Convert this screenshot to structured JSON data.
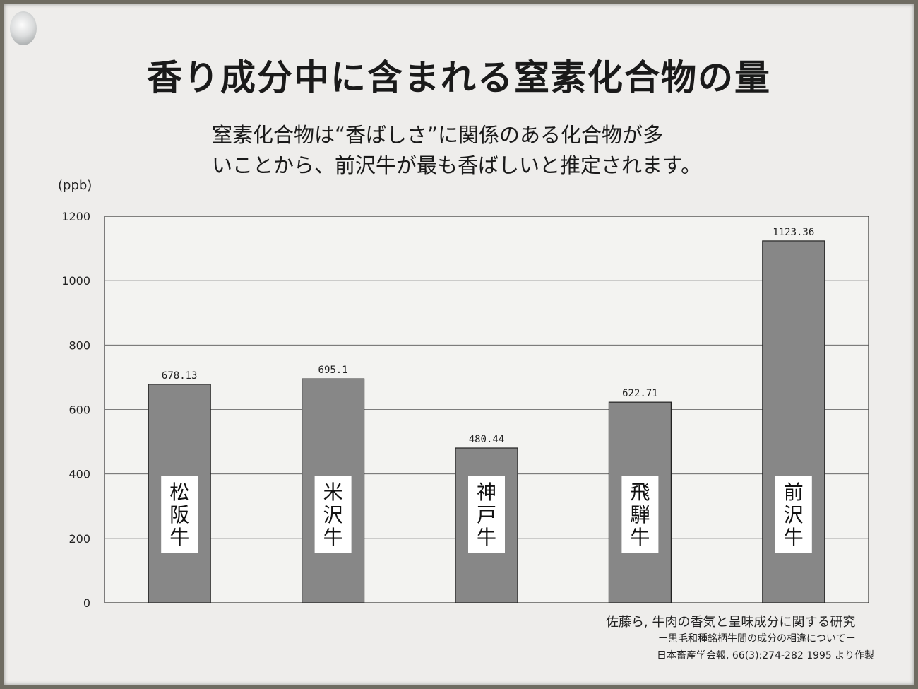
{
  "title": "香り成分中に含まれる窒素化合物の量",
  "subtitle_line1": "窒素化合物は“香ばしさ”に関係のある化合物が多",
  "subtitle_line2": "いことから、前沢牛が最も香ばしいと推定されます。",
  "source": {
    "line1": "佐藤ら, 牛肉の香気と呈味成分に関する研究",
    "line2": "ー黒毛和種銘柄牛間の成分の相違についてー",
    "line3": "日本畜産学会報, 66(3):274-282 1995 より作製"
  },
  "chart_data": {
    "type": "bar",
    "unit": "(ppb)",
    "categories": [
      "松阪牛",
      "米沢牛",
      "神戸牛",
      "飛騨牛",
      "前沢牛"
    ],
    "values": [
      678.13,
      695.1,
      480.44,
      622.71,
      1123.36
    ],
    "value_labels": [
      "678.13",
      "695.1",
      "480.44",
      "622.71",
      "1123.36"
    ],
    "yticks": [
      "0",
      "200",
      "400",
      "600",
      "800",
      "1000",
      "1200"
    ],
    "ylim": [
      0,
      1200
    ],
    "grid": true,
    "bar_color": "#878787",
    "label_box_color": "#ffffff"
  }
}
